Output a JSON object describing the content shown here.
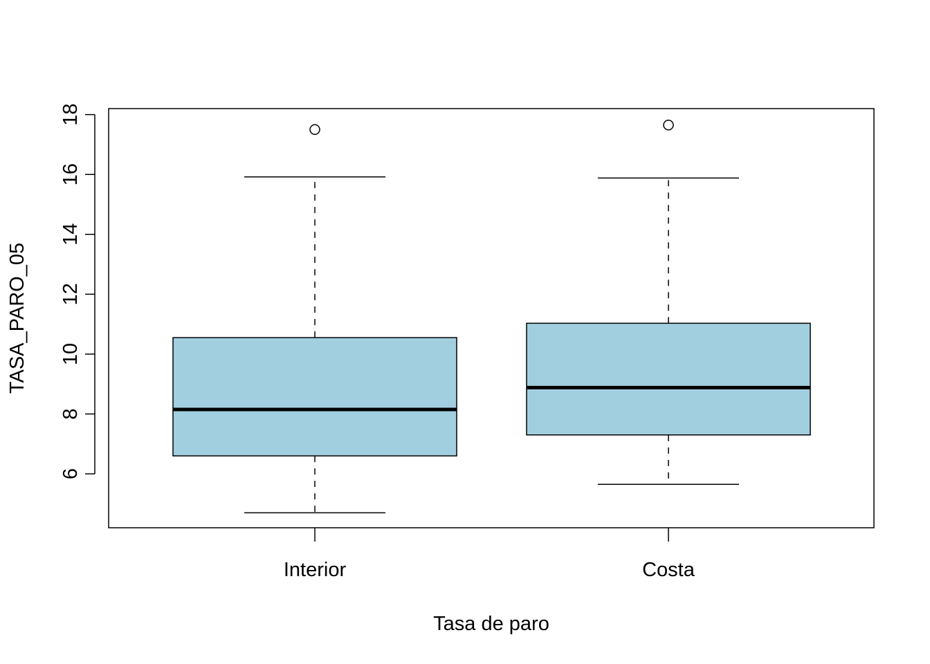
{
  "chart_data": {
    "type": "boxplot",
    "title": "",
    "xlabel": "Tasa de paro",
    "ylabel": "TASA_PARO_05",
    "ylim": [
      4.2,
      18.2
    ],
    "yticks": [
      6,
      8,
      10,
      12,
      14,
      16,
      18
    ],
    "grid": false,
    "box_color": "#a2cfe0",
    "categories": [
      "Interior",
      "Costa"
    ],
    "series": [
      {
        "category": "Interior",
        "whisker_low": 4.7,
        "q1": 6.6,
        "median": 8.15,
        "q3": 10.55,
        "whisker_high": 15.92,
        "outliers": [
          17.5
        ]
      },
      {
        "category": "Costa",
        "whisker_low": 5.65,
        "q1": 7.3,
        "median": 8.88,
        "q3": 11.03,
        "whisker_high": 15.88,
        "outliers": [
          17.65
        ]
      }
    ]
  }
}
